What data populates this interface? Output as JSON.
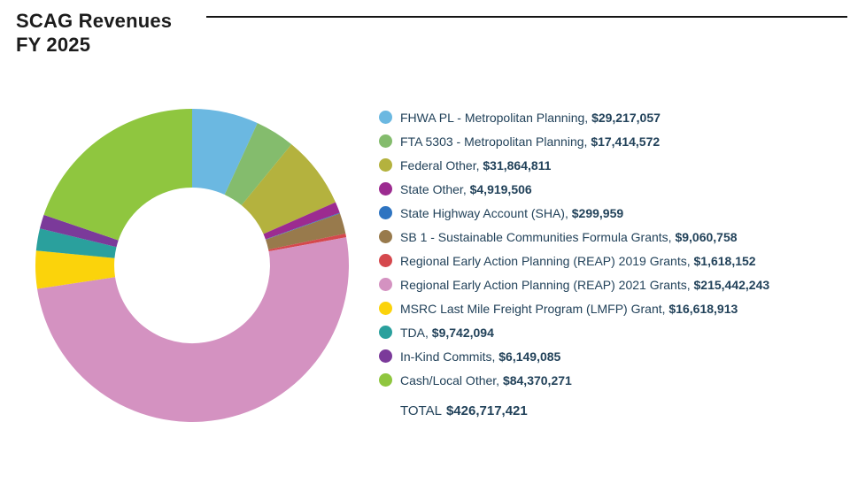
{
  "header": {
    "title_line1": "SCAG Revenues",
    "title_line2": "FY 2025"
  },
  "text_color": "#22425a",
  "chart_data": {
    "type": "pie",
    "title": "SCAG Revenues FY 2025",
    "donut": true,
    "inner_radius_ratio": 0.497,
    "start_angle_deg": 0,
    "direction": "clockwise",
    "legend_position": "right",
    "total_label": "TOTAL",
    "total_amount": "$426,717,421",
    "total_value": 426717421,
    "items": [
      {
        "label": "FHWA PL - Metropolitan Planning",
        "amount": "$29,217,057",
        "value": 29217057,
        "color": "#6bb8e1"
      },
      {
        "label": "FTA 5303 - Metropolitan Planning",
        "amount": "$17,414,572",
        "value": 17414572,
        "color": "#84bc6d"
      },
      {
        "label": "Federal Other",
        "amount": "$31,864,811",
        "value": 31864811,
        "color": "#b4b23e"
      },
      {
        "label": "State Other",
        "amount": "$4,919,506",
        "value": 4919506,
        "color": "#9c2b90"
      },
      {
        "label": "State Highway Account (SHA)",
        "amount": "$299,959",
        "value": 299959,
        "color": "#2e74c1"
      },
      {
        "label": "SB 1 - Sustainable Communities Formula Grants",
        "amount": "$9,060,758",
        "value": 9060758,
        "color": "#987a4c"
      },
      {
        "label": "Regional Early Action Planning (REAP) 2019 Grants",
        "amount": "$1,618,152",
        "value": 1618152,
        "color": "#d5484d"
      },
      {
        "label": "Regional Early Action Planning (REAP) 2021 Grants",
        "amount": "$215,442,243",
        "value": 215442243,
        "color": "#d492c1"
      },
      {
        "label": "MSRC Last Mile Freight Program (LMFP) Grant",
        "amount": "$16,618,913",
        "value": 16618913,
        "color": "#fbd30b"
      },
      {
        "label": "TDA",
        "amount": "$9,742,094",
        "value": 9742094,
        "color": "#2aa09d"
      },
      {
        "label": "In-Kind Commits",
        "amount": "$6,149,085",
        "value": 6149085,
        "color": "#7b3a9a"
      },
      {
        "label": "Cash/Local Other",
        "amount": "$84,370,271",
        "value": 84370271,
        "color": "#8fc63f"
      }
    ]
  }
}
